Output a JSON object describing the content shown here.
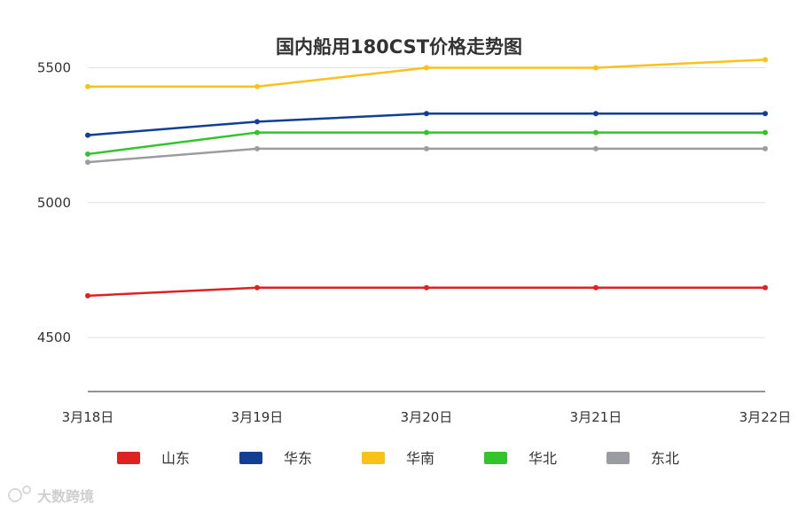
{
  "chart_data": {
    "type": "line",
    "title": "国内船用180CST价格走势图",
    "categories": [
      "3月18日",
      "3月19日",
      "3月20日",
      "3月21日",
      "3月22日"
    ],
    "ylim": [
      4300,
      5600
    ],
    "yticks": [
      4500,
      5000,
      5500
    ],
    "grid": true,
    "legend_position": "bottom",
    "series": [
      {
        "name": "山东",
        "color": "#dd2222",
        "values": [
          4655,
          4685,
          4685,
          4685,
          4685
        ]
      },
      {
        "name": "华东",
        "color": "#123f93",
        "values": [
          5250,
          5300,
          5330,
          5330,
          5330
        ]
      },
      {
        "name": "华南",
        "color": "#f8c21a",
        "values": [
          5430,
          5430,
          5500,
          5500,
          5530
        ]
      },
      {
        "name": "华北",
        "color": "#33c42b",
        "values": [
          5180,
          5260,
          5260,
          5260,
          5260
        ]
      },
      {
        "name": "东北",
        "color": "#9a9ca2",
        "values": [
          5150,
          5200,
          5200,
          5200,
          5200
        ]
      }
    ]
  },
  "watermark": {
    "text": "大数跨境",
    "icon": "brand-logo-icon"
  }
}
